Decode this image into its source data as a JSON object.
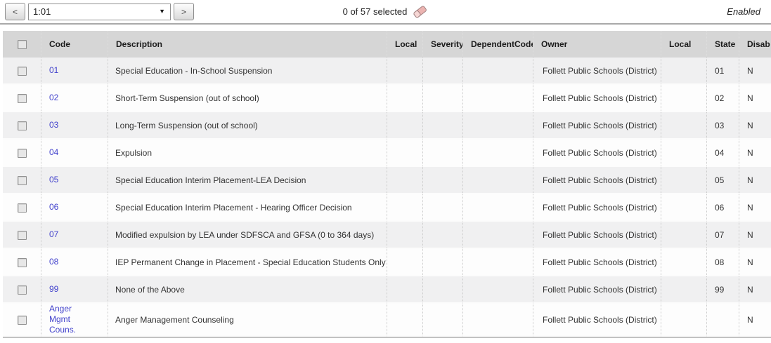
{
  "colors": {
    "link": "#4242cc",
    "header_bg": "#d6d6d6",
    "row_alt_bg": "#f0f0f1",
    "row_bg": "#fdfdfd",
    "eraser_pink": "#ecb4b1",
    "toolbar_border": "#a9a9a9"
  },
  "toolbar": {
    "prev_button_label": "<",
    "select_value": "1:01",
    "next_button_label": ">",
    "selection_status": "0 of 57 selected",
    "mode_label": "Enabled"
  },
  "table": {
    "columns": [
      {
        "key": "code",
        "label": "Code"
      },
      {
        "key": "description",
        "label": "Description"
      },
      {
        "key": "local",
        "label": "Local"
      },
      {
        "key": "severity",
        "label": "Severity"
      },
      {
        "key": "dependent_code",
        "label": "DependentCode"
      },
      {
        "key": "owner",
        "label": "Owner"
      },
      {
        "key": "local2",
        "label": "Local"
      },
      {
        "key": "state",
        "label": "State"
      },
      {
        "key": "disabled",
        "label": "Disab"
      }
    ],
    "rows": [
      {
        "code": "01",
        "description": "Special Education - In-School Suspension",
        "local": "",
        "severity": "",
        "dependent_code": "",
        "owner": "Follett Public Schools (District)",
        "local2": "",
        "state": "01",
        "disabled": "N"
      },
      {
        "code": "02",
        "description": "Short-Term Suspension (out of school)",
        "local": "",
        "severity": "",
        "dependent_code": "",
        "owner": "Follett Public Schools (District)",
        "local2": "",
        "state": "02",
        "disabled": "N"
      },
      {
        "code": "03",
        "description": "Long-Term Suspension (out of school)",
        "local": "",
        "severity": "",
        "dependent_code": "",
        "owner": "Follett Public Schools (District)",
        "local2": "",
        "state": "03",
        "disabled": "N"
      },
      {
        "code": "04",
        "description": "Expulsion",
        "local": "",
        "severity": "",
        "dependent_code": "",
        "owner": "Follett Public Schools (District)",
        "local2": "",
        "state": "04",
        "disabled": "N"
      },
      {
        "code": "05",
        "description": "Special Education Interim Placement-LEA Decision",
        "local": "",
        "severity": "",
        "dependent_code": "",
        "owner": "Follett Public Schools (District)",
        "local2": "",
        "state": "05",
        "disabled": "N"
      },
      {
        "code": "06",
        "description": "Special Education Interim Placement - Hearing Officer Decision",
        "local": "",
        "severity": "",
        "dependent_code": "",
        "owner": "Follett Public Schools (District)",
        "local2": "",
        "state": "06",
        "disabled": "N"
      },
      {
        "code": "07",
        "description": "Modified expulsion by LEA under SDFSCA and GFSA (0 to 364 days)",
        "local": "",
        "severity": "",
        "dependent_code": "",
        "owner": "Follett Public Schools (District)",
        "local2": "",
        "state": "07",
        "disabled": "N"
      },
      {
        "code": "08",
        "description": "IEP Permanent Change in Placement - Special Education Students Only",
        "local": "",
        "severity": "",
        "dependent_code": "",
        "owner": "Follett Public Schools (District)",
        "local2": "",
        "state": "08",
        "disabled": "N"
      },
      {
        "code": "99",
        "description": "None of the Above",
        "local": "",
        "severity": "",
        "dependent_code": "",
        "owner": "Follett Public Schools (District)",
        "local2": "",
        "state": "99",
        "disabled": "N"
      },
      {
        "code": "Anger Mgmt Couns.",
        "description": "Anger Management Counseling",
        "local": "",
        "severity": "",
        "dependent_code": "",
        "owner": "Follett Public Schools (District)",
        "local2": "",
        "state": "",
        "disabled": "N"
      }
    ]
  }
}
